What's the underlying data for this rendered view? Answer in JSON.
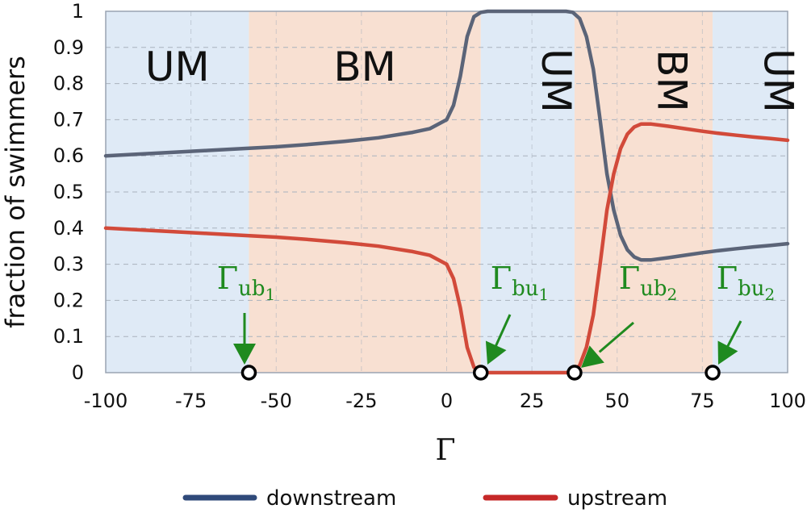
{
  "chart_data": {
    "type": "line",
    "xlabel": "Γ",
    "ylabel": "fraction of swimmers",
    "xlim": [
      -100,
      100
    ],
    "ylim": [
      0,
      1
    ],
    "x_ticks": [
      "-100",
      "-75",
      "-50",
      "-25",
      "0",
      "25",
      "50",
      "75",
      "100"
    ],
    "y_ticks": [
      "0",
      "0.1",
      "0.2",
      "0.3",
      "0.4",
      "0.5",
      "0.6",
      "0.7",
      "0.8",
      "0.9",
      "1"
    ],
    "grid": "dashed",
    "legend_position": "bottom",
    "colors": {
      "downstream": "#5b6478",
      "upstream": "#d24a3a",
      "UM": "#dfeaf6",
      "BM": "#f8e0d2",
      "annotation": "#1f8a1f",
      "legend_downstream": "#2f4a7a",
      "legend_upstream": "#c62828"
    },
    "regions": [
      {
        "label": "UM",
        "from": -100,
        "to": -58,
        "orientation": "horizontal"
      },
      {
        "label": "BM",
        "from": -58,
        "to": 10,
        "orientation": "horizontal"
      },
      {
        "label": "UM",
        "from": 10,
        "to": 37.5,
        "orientation": "vertical"
      },
      {
        "label": "BM",
        "from": 37.5,
        "to": 78,
        "orientation": "vertical"
      },
      {
        "label": "UM",
        "from": 78,
        "to": 100,
        "orientation": "vertical"
      }
    ],
    "series": [
      {
        "name": "downstream",
        "x": [
          -100,
          -90,
          -80,
          -70,
          -60,
          -50,
          -40,
          -30,
          -20,
          -10,
          -5,
          0,
          2,
          4,
          6,
          8,
          10,
          12,
          15,
          20,
          25,
          30,
          35,
          37,
          39,
          41,
          43,
          45,
          47,
          49,
          51,
          53,
          55,
          57,
          60,
          65,
          70,
          75,
          80,
          85,
          90,
          95,
          100
        ],
        "y": [
          0.6,
          0.605,
          0.61,
          0.615,
          0.62,
          0.625,
          0.632,
          0.64,
          0.65,
          0.665,
          0.675,
          0.7,
          0.74,
          0.82,
          0.93,
          0.985,
          0.997,
          1.0,
          1.0,
          1.0,
          1.0,
          1.0,
          1.0,
          0.997,
          0.98,
          0.93,
          0.84,
          0.7,
          0.55,
          0.45,
          0.38,
          0.34,
          0.32,
          0.312,
          0.312,
          0.318,
          0.325,
          0.332,
          0.338,
          0.343,
          0.348,
          0.352,
          0.357
        ]
      },
      {
        "name": "upstream",
        "x": [
          -100,
          -90,
          -80,
          -70,
          -60,
          -50,
          -40,
          -30,
          -20,
          -10,
          -5,
          0,
          2,
          4,
          6,
          8,
          10,
          12,
          15,
          20,
          25,
          30,
          35,
          37,
          39,
          41,
          43,
          45,
          47,
          49,
          51,
          53,
          55,
          57,
          60,
          65,
          70,
          75,
          80,
          85,
          90,
          95,
          100
        ],
        "y": [
          0.4,
          0.395,
          0.39,
          0.385,
          0.38,
          0.375,
          0.368,
          0.36,
          0.35,
          0.335,
          0.325,
          0.3,
          0.26,
          0.18,
          0.07,
          0.015,
          0.003,
          0.0,
          0.0,
          0.0,
          0.0,
          0.0,
          0.0,
          0.003,
          0.02,
          0.07,
          0.16,
          0.3,
          0.45,
          0.55,
          0.62,
          0.66,
          0.68,
          0.688,
          0.688,
          0.682,
          0.675,
          0.668,
          0.662,
          0.657,
          0.652,
          0.648,
          0.643
        ]
      }
    ],
    "markers": [
      {
        "label_base": "Γ",
        "label_sub": "ub",
        "label_subsub": "1",
        "x": -58,
        "y": 0
      },
      {
        "label_base": "Γ",
        "label_sub": "bu",
        "label_subsub": "1",
        "x": 10,
        "y": 0
      },
      {
        "label_base": "Γ",
        "label_sub": "ub",
        "label_subsub": "2",
        "x": 37.5,
        "y": 0
      },
      {
        "label_base": "Γ",
        "label_sub": "bu",
        "label_subsub": "2",
        "x": 78,
        "y": 0
      }
    ],
    "legend": [
      "downstream",
      "upstream"
    ]
  }
}
